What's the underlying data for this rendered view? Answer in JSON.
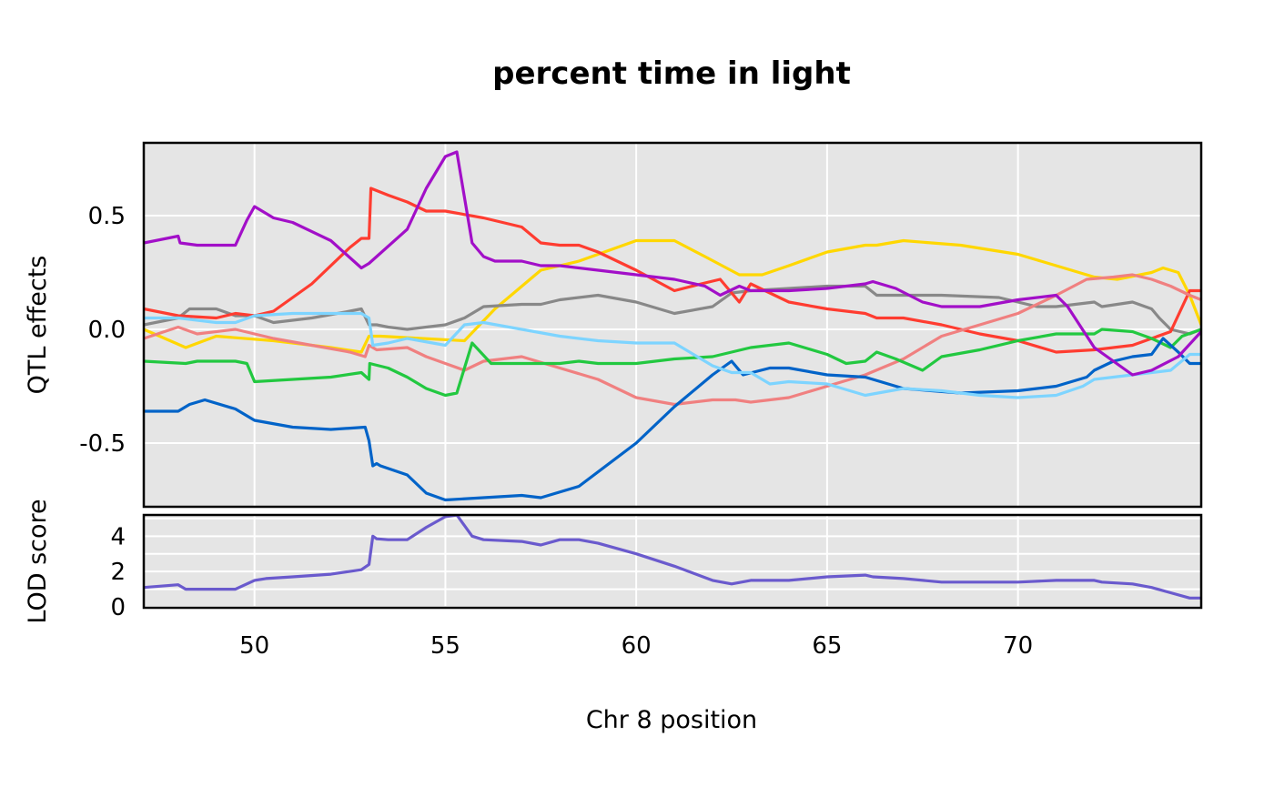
{
  "chart_data": {
    "type": "line",
    "title": "percent time in light",
    "xlabel": "Chr 8 position",
    "xlim": [
      47.1,
      74.8
    ],
    "xticks": [
      50,
      55,
      60,
      65,
      70
    ],
    "xtick_labels": [
      "50",
      "55",
      "60",
      "65",
      "70"
    ],
    "panels": [
      {
        "id": "effects",
        "ylabel": "QTL effects",
        "ylim": [
          -0.78,
          0.82
        ],
        "yticks": [
          0.5,
          0.0,
          -0.5
        ],
        "ytick_labels": [
          "0.5",
          "0.0",
          "-0.5"
        ],
        "grid": true,
        "series": [
          {
            "color": "#ffd700",
            "x": [
              47.1,
              48.2,
              49.0,
              50.5,
              52.0,
              52.8,
              53.0,
              53.3,
              55.5,
              56.3,
              57.5,
              58.5,
              60.0,
              61.0,
              61.8,
              62.7,
              63.3,
              64.0,
              65.0,
              66.0,
              66.3,
              67.0,
              68.5,
              70.0,
              71.0,
              72.0,
              72.6,
              73.5,
              73.8,
              74.2,
              74.5,
              74.8
            ],
            "y": [
              0.0,
              -0.08,
              -0.03,
              -0.05,
              -0.08,
              -0.1,
              -0.03,
              -0.03,
              -0.05,
              0.09,
              0.26,
              0.3,
              0.39,
              0.39,
              0.32,
              0.24,
              0.24,
              0.28,
              0.34,
              0.37,
              0.37,
              0.39,
              0.37,
              0.33,
              0.28,
              0.23,
              0.22,
              0.25,
              0.27,
              0.25,
              0.15,
              0.02
            ]
          },
          {
            "color": "#888888",
            "x": [
              47.1,
              48.0,
              48.3,
              49.0,
              49.5,
              50.0,
              50.5,
              51.5,
              52.5,
              52.8,
              53.0,
              53.2,
              53.5,
              54.0,
              55.0,
              55.5,
              56.0,
              57.0,
              57.5,
              58.0,
              59.0,
              60.0,
              61.0,
              62.0,
              62.5,
              63.0,
              64.0,
              65.0,
              66.0,
              66.3,
              67.0,
              68.0,
              69.5,
              70.0,
              70.5,
              71.0,
              71.5,
              72.0,
              72.2,
              73.0,
              73.5,
              73.7,
              74.0,
              74.5,
              74.8
            ],
            "y": [
              0.02,
              0.05,
              0.09,
              0.09,
              0.06,
              0.06,
              0.03,
              0.05,
              0.08,
              0.09,
              0.02,
              0.02,
              0.01,
              0.0,
              0.02,
              0.05,
              0.1,
              0.11,
              0.11,
              0.13,
              0.15,
              0.12,
              0.07,
              0.1,
              0.16,
              0.17,
              0.18,
              0.19,
              0.19,
              0.15,
              0.15,
              0.15,
              0.14,
              0.12,
              0.1,
              0.1,
              0.11,
              0.12,
              0.1,
              0.12,
              0.09,
              0.05,
              0.0,
              -0.02,
              0.0
            ]
          },
          {
            "color": "#ff3c30",
            "x": [
              47.1,
              48.0,
              49.0,
              49.5,
              50.0,
              50.5,
              51.5,
              52.5,
              52.8,
              53.0,
              53.05,
              53.5,
              54.0,
              54.5,
              55.0,
              56.0,
              57.0,
              57.5,
              58.0,
              58.5,
              59.0,
              60.0,
              61.0,
              61.7,
              62.2,
              62.7,
              63.0,
              64.0,
              65.0,
              66.0,
              66.3,
              67.0,
              68.0,
              69.0,
              70.0,
              71.0,
              72.0,
              72.5,
              73.0,
              74.0,
              74.5,
              74.8
            ],
            "y": [
              0.09,
              0.06,
              0.05,
              0.07,
              0.06,
              0.08,
              0.2,
              0.36,
              0.4,
              0.4,
              0.62,
              0.59,
              0.56,
              0.52,
              0.52,
              0.49,
              0.45,
              0.38,
              0.37,
              0.37,
              0.34,
              0.26,
              0.17,
              0.2,
              0.22,
              0.12,
              0.2,
              0.12,
              0.09,
              0.07,
              0.05,
              0.05,
              0.02,
              -0.02,
              -0.05,
              -0.1,
              -0.09,
              -0.08,
              -0.07,
              -0.01,
              0.17,
              0.17
            ]
          },
          {
            "color": "#f08080",
            "x": [
              47.1,
              48.0,
              48.5,
              49.5,
              50.5,
              51.5,
              52.5,
              52.9,
              53.0,
              53.2,
              54.0,
              54.5,
              55.0,
              55.5,
              56.0,
              57.0,
              58.0,
              59.0,
              60.0,
              61.0,
              62.0,
              62.6,
              63.0,
              64.0,
              65.0,
              66.0,
              67.0,
              68.0,
              69.0,
              70.0,
              71.0,
              71.8,
              72.5,
              73.0,
              73.5,
              74.0,
              74.5,
              74.8
            ],
            "y": [
              -0.04,
              0.01,
              -0.02,
              0.0,
              -0.04,
              -0.07,
              -0.1,
              -0.12,
              -0.07,
              -0.09,
              -0.08,
              -0.12,
              -0.15,
              -0.18,
              -0.14,
              -0.12,
              -0.17,
              -0.22,
              -0.3,
              -0.33,
              -0.31,
              -0.31,
              -0.32,
              -0.3,
              -0.25,
              -0.2,
              -0.13,
              -0.03,
              0.02,
              0.07,
              0.15,
              0.22,
              0.23,
              0.24,
              0.22,
              0.19,
              0.15,
              0.13
            ]
          },
          {
            "color": "#22c840",
            "x": [
              47.1,
              48.2,
              48.5,
              49.5,
              49.8,
              50.0,
              51.0,
              52.0,
              52.8,
              53.0,
              53.02,
              53.5,
              54.0,
              54.5,
              55.0,
              55.3,
              55.7,
              56.2,
              57.0,
              58.0,
              58.5,
              59.0,
              60.0,
              61.0,
              62.0,
              62.5,
              63.0,
              64.0,
              65.0,
              65.5,
              66.0,
              66.3,
              66.8,
              67.5,
              68.0,
              69.0,
              70.0,
              71.0,
              72.0,
              72.2,
              73.0,
              73.5,
              74.0,
              74.3,
              74.8
            ],
            "y": [
              -0.14,
              -0.15,
              -0.14,
              -0.14,
              -0.15,
              -0.23,
              -0.22,
              -0.21,
              -0.19,
              -0.22,
              -0.15,
              -0.17,
              -0.21,
              -0.26,
              -0.29,
              -0.28,
              -0.06,
              -0.15,
              -0.15,
              -0.15,
              -0.14,
              -0.15,
              -0.15,
              -0.13,
              -0.12,
              -0.1,
              -0.08,
              -0.06,
              -0.11,
              -0.15,
              -0.14,
              -0.1,
              -0.13,
              -0.18,
              -0.12,
              -0.09,
              -0.05,
              -0.02,
              -0.02,
              0.0,
              -0.01,
              -0.04,
              -0.08,
              -0.03,
              0.0
            ]
          },
          {
            "color": "#0063c8",
            "x": [
              47.1,
              48.0,
              48.3,
              48.7,
              49.5,
              50.0,
              51.0,
              52.0,
              52.9,
              53.0,
              53.1,
              53.2,
              53.3,
              54.0,
              54.5,
              55.0,
              56.0,
              57.0,
              57.5,
              58.5,
              60.0,
              61.0,
              62.0,
              62.5,
              62.8,
              63.5,
              64.0,
              65.0,
              66.0,
              67.0,
              68.5,
              70.0,
              71.0,
              71.8,
              72.0,
              72.5,
              73.0,
              73.5,
              73.8,
              74.2,
              74.5,
              74.8
            ],
            "y": [
              -0.36,
              -0.36,
              -0.33,
              -0.31,
              -0.35,
              -0.4,
              -0.43,
              -0.44,
              -0.43,
              -0.49,
              -0.6,
              -0.59,
              -0.6,
              -0.64,
              -0.72,
              -0.75,
              -0.74,
              -0.73,
              -0.74,
              -0.69,
              -0.5,
              -0.34,
              -0.2,
              -0.14,
              -0.2,
              -0.17,
              -0.17,
              -0.2,
              -0.21,
              -0.26,
              -0.28,
              -0.27,
              -0.25,
              -0.21,
              -0.18,
              -0.14,
              -0.12,
              -0.11,
              -0.04,
              -0.1,
              -0.15,
              -0.15
            ]
          },
          {
            "color": "#7dd4ff",
            "x": [
              47.1,
              48.0,
              49.0,
              49.5,
              50.0,
              51.0,
              52.0,
              52.8,
              53.0,
              53.1,
              53.5,
              54.0,
              55.0,
              55.5,
              56.0,
              57.0,
              58.0,
              59.0,
              60.0,
              61.0,
              62.0,
              62.5,
              63.0,
              63.5,
              64.0,
              65.0,
              66.0,
              67.0,
              68.0,
              69.0,
              70.0,
              71.0,
              71.7,
              72.0,
              73.0,
              74.0,
              74.5,
              74.8
            ],
            "y": [
              0.05,
              0.05,
              0.03,
              0.03,
              0.06,
              0.07,
              0.07,
              0.07,
              0.05,
              -0.07,
              -0.06,
              -0.04,
              -0.07,
              0.02,
              0.03,
              0.0,
              -0.03,
              -0.05,
              -0.06,
              -0.06,
              -0.16,
              -0.19,
              -0.19,
              -0.24,
              -0.23,
              -0.24,
              -0.29,
              -0.26,
              -0.27,
              -0.29,
              -0.3,
              -0.29,
              -0.25,
              -0.22,
              -0.2,
              -0.18,
              -0.11,
              -0.11
            ]
          },
          {
            "color": "#a20fc8",
            "x": [
              47.1,
              48.0,
              48.05,
              48.5,
              49.5,
              49.8,
              50.0,
              50.5,
              51.0,
              52.0,
              52.8,
              53.0,
              54.0,
              54.5,
              55.0,
              55.3,
              55.7,
              56.0,
              56.3,
              57.0,
              57.5,
              58.0,
              59.0,
              60.0,
              61.0,
              61.8,
              62.2,
              62.7,
              63.0,
              64.0,
              65.0,
              66.0,
              66.2,
              66.8,
              67.5,
              68.0,
              69.0,
              70.0,
              71.0,
              71.3,
              72.0,
              73.0,
              73.5,
              74.2,
              74.8
            ],
            "y": [
              0.38,
              0.41,
              0.38,
              0.37,
              0.37,
              0.48,
              0.54,
              0.49,
              0.47,
              0.39,
              0.27,
              0.29,
              0.44,
              0.62,
              0.76,
              0.78,
              0.38,
              0.32,
              0.3,
              0.3,
              0.28,
              0.28,
              0.26,
              0.24,
              0.22,
              0.19,
              0.15,
              0.19,
              0.17,
              0.17,
              0.18,
              0.2,
              0.21,
              0.18,
              0.12,
              0.1,
              0.1,
              0.13,
              0.15,
              0.1,
              -0.08,
              -0.2,
              -0.18,
              -0.12,
              -0.01
            ]
          }
        ]
      },
      {
        "id": "lod",
        "ylabel": "LOD score",
        "ylim": [
          -0.05,
          5.2
        ],
        "yticks": [
          4,
          2,
          0
        ],
        "ytick_labels": [
          "4",
          "2",
          "0"
        ],
        "grid": true,
        "series": [
          {
            "color": "#6a5acd",
            "x": [
              47.1,
              48.0,
              48.2,
              48.5,
              49.0,
              49.5,
              49.7,
              50.0,
              50.3,
              51.0,
              52.0,
              52.8,
              53.0,
              53.1,
              53.2,
              53.5,
              54.0,
              54.5,
              55.0,
              55.3,
              55.7,
              56.0,
              57.0,
              57.5,
              58.0,
              58.5,
              59.0,
              60.0,
              61.0,
              62.0,
              62.5,
              63.0,
              64.0,
              65.0,
              66.0,
              66.2,
              67.0,
              68.0,
              69.0,
              70.0,
              71.0,
              72.0,
              72.2,
              73.0,
              73.5,
              74.0,
              74.5,
              74.8
            ],
            "y": [
              1.1,
              1.25,
              1.0,
              1.0,
              1.0,
              1.0,
              1.2,
              1.5,
              1.6,
              1.7,
              1.85,
              2.1,
              2.4,
              4.0,
              3.85,
              3.8,
              3.8,
              4.5,
              5.1,
              5.2,
              4.0,
              3.8,
              3.7,
              3.5,
              3.8,
              3.8,
              3.6,
              3.0,
              2.3,
              1.5,
              1.3,
              1.5,
              1.5,
              1.7,
              1.8,
              1.7,
              1.6,
              1.4,
              1.4,
              1.4,
              1.5,
              1.5,
              1.4,
              1.3,
              1.1,
              0.8,
              0.5,
              0.5
            ]
          }
        ]
      }
    ]
  }
}
